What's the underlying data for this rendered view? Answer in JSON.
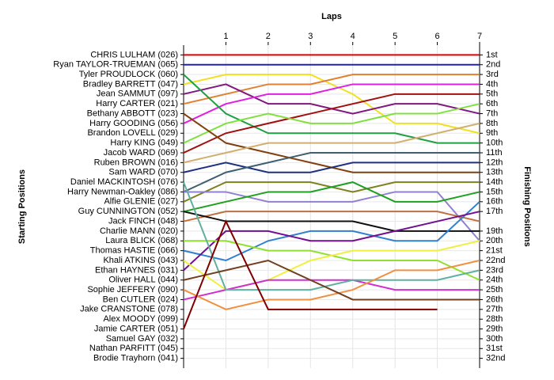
{
  "chart_data": {
    "type": "line",
    "x_label": "Laps",
    "y_label": "Starting Positions",
    "y2_label": "Finishing Positions",
    "x": [
      0,
      1,
      2,
      3,
      4,
      5,
      6,
      7
    ],
    "xlim": [
      0,
      7
    ],
    "xticks": [
      1,
      2,
      3,
      4,
      5,
      6,
      7
    ],
    "ylim": [
      0,
      33
    ],
    "inverted": true,
    "grid": true,
    "yticks": [
      {
        "value": 1,
        "label": "CHRIS LULHAM (026)"
      },
      {
        "value": 2,
        "label": "Ryan TAYLOR-TRUEMAN (065)"
      },
      {
        "value": 3,
        "label": "Tyler PROUDLOCK (060)"
      },
      {
        "value": 4,
        "label": "Bradley BARRETT (047)"
      },
      {
        "value": 5,
        "label": "Jean SAMMUT (097)"
      },
      {
        "value": 6,
        "label": "Harry CARTER (021)"
      },
      {
        "value": 7,
        "label": "Bethany ABBOTT (023)"
      },
      {
        "value": 8,
        "label": "Harry GOODING (056)"
      },
      {
        "value": 9,
        "label": "Brandon LOVELL (029)"
      },
      {
        "value": 10,
        "label": "Harry KING (049)"
      },
      {
        "value": 11,
        "label": "Jacob WARD (069)"
      },
      {
        "value": 12,
        "label": "Ruben BROWN (016)"
      },
      {
        "value": 13,
        "label": "Sam WARD (070)"
      },
      {
        "value": 14,
        "label": "Daniel MACKINTOSH (076)"
      },
      {
        "value": 15,
        "label": "Harry Newman-Oakley (086)"
      },
      {
        "value": 16,
        "label": "Alfie GLENIE (027)"
      },
      {
        "value": 17,
        "label": "Guy CUNNINGTON (052)"
      },
      {
        "value": 18,
        "label": "Jack FINCH (048)"
      },
      {
        "value": 19,
        "label": "Charlie MANN (020)"
      },
      {
        "value": 20,
        "label": "Laura BLICK (068)"
      },
      {
        "value": 21,
        "label": "Thomas HASTIE (066)"
      },
      {
        "value": 22,
        "label": "Khali ATKINS (043)"
      },
      {
        "value": 23,
        "label": "Ethan HAYNES (031)"
      },
      {
        "value": 24,
        "label": "Oliver HALL (044)"
      },
      {
        "value": 25,
        "label": "Sophie JEFFERY (090)"
      },
      {
        "value": 26,
        "label": "Ben CUTLER (024)"
      },
      {
        "value": 27,
        "label": "Jake CRANSTONE (078)"
      },
      {
        "value": 28,
        "label": "Alex MOODY (099)"
      },
      {
        "value": 29,
        "label": "Jamie CARTER (051)"
      },
      {
        "value": 30,
        "label": "Samuel GAY (032)"
      },
      {
        "value": 31,
        "label": "Nathan PARFITT (045)"
      },
      {
        "value": 32,
        "label": "Brodie Trayhorn (041)"
      }
    ],
    "y2ticks": [
      {
        "value": 1,
        "label": "1st"
      },
      {
        "value": 2,
        "label": "2nd"
      },
      {
        "value": 3,
        "label": "3rd"
      },
      {
        "value": 4,
        "label": "4th"
      },
      {
        "value": 5,
        "label": "5th"
      },
      {
        "value": 6,
        "label": "6th"
      },
      {
        "value": 7,
        "label": "7th"
      },
      {
        "value": 8,
        "label": "8th"
      },
      {
        "value": 9,
        "label": "9th"
      },
      {
        "value": 10,
        "label": "10th"
      },
      {
        "value": 11,
        "label": "11th"
      },
      {
        "value": 12,
        "label": "12th"
      },
      {
        "value": 13,
        "label": "13th"
      },
      {
        "value": 14,
        "label": "14th"
      },
      {
        "value": 15,
        "label": "15th"
      },
      {
        "value": 16,
        "label": "16th"
      },
      {
        "value": 17,
        "label": "17th"
      },
      {
        "value": 19,
        "label": "19th"
      },
      {
        "value": 20,
        "label": "20th"
      },
      {
        "value": 21,
        "label": "21st"
      },
      {
        "value": 22,
        "label": "22nd"
      },
      {
        "value": 23,
        "label": "23rd"
      },
      {
        "value": 24,
        "label": "24th"
      },
      {
        "value": 25,
        "label": "25th"
      },
      {
        "value": 26,
        "label": "26th"
      },
      {
        "value": 27,
        "label": "27th"
      },
      {
        "value": 28,
        "label": "28th"
      },
      {
        "value": 29,
        "label": "29th"
      },
      {
        "value": 30,
        "label": "30th"
      },
      {
        "value": 31,
        "label": "31st"
      },
      {
        "value": 32,
        "label": "32nd"
      }
    ],
    "series": [
      {
        "color": "#e00000",
        "values": [
          1,
          1,
          1,
          1,
          1,
          1,
          1,
          1
        ]
      },
      {
        "color": "#2020c0",
        "values": [
          2,
          2,
          2,
          2,
          2,
          2,
          2,
          2
        ]
      },
      {
        "color": "#f0e020",
        "values": [
          4,
          3,
          3,
          3,
          5,
          8,
          8,
          9
        ]
      },
      {
        "color": "#e08030",
        "values": [
          6,
          5,
          4,
          4,
          3,
          3,
          3,
          3
        ]
      },
      {
        "color": "#801880",
        "values": [
          5,
          4,
          6,
          6,
          7,
          6,
          6,
          7
        ]
      },
      {
        "color": "#e020e0",
        "values": [
          8,
          6,
          5,
          5,
          4,
          4,
          4,
          4
        ]
      },
      {
        "color": "#20a040",
        "values": [
          3,
          7,
          9,
          9,
          9,
          9,
          10,
          10
        ]
      },
      {
        "color": "#a01010",
        "values": [
          11,
          9,
          8,
          7,
          6,
          5,
          5,
          5
        ]
      },
      {
        "color": "#80e040",
        "values": [
          10,
          8,
          7,
          8,
          8,
          7,
          7,
          6
        ]
      },
      {
        "color": "#804010",
        "values": [
          7,
          10,
          11,
          12,
          13,
          13,
          13,
          13
        ]
      },
      {
        "color": "#d0b070",
        "values": [
          12,
          11,
          10,
          10,
          10,
          10,
          9,
          8
        ]
      },
      {
        "color": "#203080",
        "values": [
          13,
          12,
          13,
          13,
          12,
          12,
          12,
          12
        ]
      },
      {
        "color": "#406070",
        "values": [
          15,
          13,
          12,
          11,
          11,
          11,
          11,
          11
        ]
      },
      {
        "color": "#808020",
        "values": [
          16,
          14,
          14,
          14,
          15,
          14,
          14,
          14
        ]
      },
      {
        "color": "#9080d0",
        "values": [
          15,
          15,
          16,
          16,
          16,
          15,
          15,
          20
        ]
      },
      {
        "color": "#20a020",
        "values": [
          17,
          16,
          15,
          15,
          14,
          16,
          16,
          15
        ]
      },
      {
        "color": "#c07040",
        "values": [
          18,
          17,
          17,
          17,
          17,
          17,
          17,
          18
        ]
      },
      {
        "color": "#101010",
        "values": [
          17,
          18,
          18,
          18,
          18,
          19,
          19,
          19
        ]
      },
      {
        "color": "#3080d0",
        "values": [
          21,
          22,
          20,
          19,
          19,
          20,
          20,
          16
        ]
      },
      {
        "color": "#701090",
        "values": [
          23,
          19,
          19,
          20,
          20,
          19,
          18,
          17
        ]
      },
      {
        "color": "#90e030",
        "values": [
          20,
          20,
          21,
          21,
          22,
          22,
          22,
          24
        ]
      },
      {
        "color": "#f0f040",
        "values": [
          22,
          25,
          24,
          22,
          21,
          21,
          21,
          20
        ]
      },
      {
        "color": "#d030d0",
        "values": [
          26,
          25,
          24,
          24,
          24,
          25,
          25,
          25
        ]
      },
      {
        "color": "#60b0a0",
        "values": [
          14,
          25,
          25,
          25,
          24,
          24,
          24,
          23
        ]
      },
      {
        "color": "#f09040",
        "values": [
          25,
          27,
          26,
          26,
          25,
          23,
          23,
          22
        ]
      },
      {
        "color": "#704020",
        "values": [
          24,
          23,
          22,
          24,
          26,
          26,
          26,
          26
        ]
      },
      {
        "color": "#800000",
        "values": [
          29,
          18,
          27,
          27,
          27,
          27,
          27,
          null
        ]
      }
    ]
  }
}
